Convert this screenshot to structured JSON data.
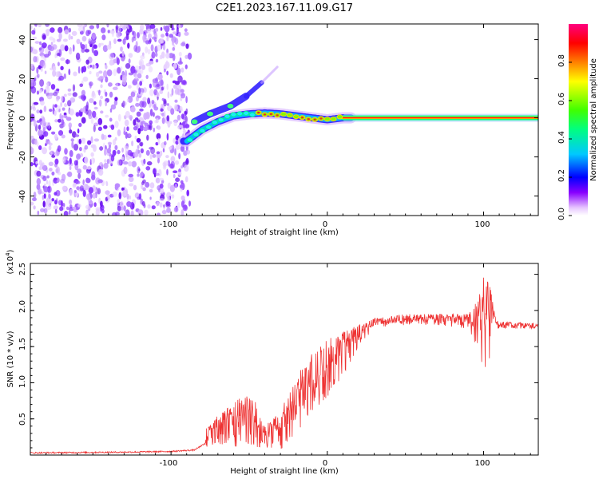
{
  "title": "C2E1.2023.167.11.09.G17",
  "chart_data": [
    {
      "type": "heatmap",
      "xlabel": "Height of straight line (km)",
      "ylabel": "Frequency (Hz)",
      "xlim": [
        -190,
        135
      ],
      "ylim": [
        -50,
        48
      ],
      "xticks": [
        -100,
        0,
        100
      ],
      "yticks": [
        -40,
        -20,
        0,
        20,
        40
      ],
      "xtick_labels": [
        "-100",
        "0",
        "100"
      ],
      "ytick_labels": [
        "-40",
        "-20",
        "0",
        "20",
        "40"
      ],
      "colorbar": {
        "label": "Normalized spectral amplitude",
        "range": [
          0,
          1
        ],
        "ticks": [
          0.0,
          0.2,
          0.4,
          0.6,
          0.8
        ],
        "tick_labels": [
          "0.0",
          "0.2",
          "0.4",
          "0.6",
          "0.8"
        ],
        "colors": [
          "#ffffff",
          "#e0b0ff",
          "#8800ff",
          "#0000ff",
          "#00c0ff",
          "#00ff80",
          "#40ff00",
          "#ffff00",
          "#ff8000",
          "#ff0000",
          "#ff0080"
        ]
      },
      "noise_region_x": [
        -190,
        -88
      ],
      "signal_trace": [
        {
          "x": -90,
          "y": -12
        },
        {
          "x": -80,
          "y": -6
        },
        {
          "x": -70,
          "y": -2
        },
        {
          "x": -60,
          "y": 1
        },
        {
          "x": -50,
          "y": 2
        },
        {
          "x": -40,
          "y": 2.5
        },
        {
          "x": -30,
          "y": 2
        },
        {
          "x": -20,
          "y": 1
        },
        {
          "x": -10,
          "y": 0
        },
        {
          "x": 0,
          "y": -1
        },
        {
          "x": 10,
          "y": 0
        },
        {
          "x": 50,
          "y": 0
        },
        {
          "x": 100,
          "y": 0
        },
        {
          "x": 135,
          "y": 0
        }
      ],
      "upper_branch": [
        {
          "x": -85,
          "y": -2
        },
        {
          "x": -75,
          "y": 2
        },
        {
          "x": -62,
          "y": 6
        },
        {
          "x": -52,
          "y": 11
        },
        {
          "x": -42,
          "y": 18
        },
        {
          "x": -32,
          "y": 26
        }
      ]
    },
    {
      "type": "line",
      "xlabel": "Height of straight line (km)",
      "ylabel": "SNR (10 * v/v)",
      "y_multiplier_label": "(x10",
      "y_multiplier_exp": "4",
      "y_multiplier_close": ")",
      "xlim": [
        -190,
        135
      ],
      "ylim": [
        0,
        2.65
      ],
      "xticks": [
        -100,
        0,
        100
      ],
      "yticks": [
        0.5,
        1.0,
        1.5,
        2.0,
        2.5
      ],
      "xtick_labels": [
        "-100",
        "0",
        "100"
      ],
      "ytick_labels": [
        "0.5",
        "1.0",
        "1.5",
        "2.0",
        "2.5"
      ],
      "line_color": "#ee3333",
      "baseline_points": [
        {
          "x": -190,
          "y": 0.02
        },
        {
          "x": -130,
          "y": 0.03
        },
        {
          "x": -100,
          "y": 0.04
        },
        {
          "x": -85,
          "y": 0.06
        },
        {
          "x": -78,
          "y": 0.15
        }
      ],
      "envelope": [
        {
          "x": -78,
          "y_low": 0.1,
          "y_high": 0.35
        },
        {
          "x": -70,
          "y_low": 0.15,
          "y_high": 0.55
        },
        {
          "x": -55,
          "y_low": 0.1,
          "y_high": 0.8
        },
        {
          "x": -48,
          "y_low": 0.15,
          "y_high": 0.9
        },
        {
          "x": -40,
          "y_low": 0.05,
          "y_high": 0.4
        },
        {
          "x": -30,
          "y_low": 0.05,
          "y_high": 0.6
        },
        {
          "x": -20,
          "y_low": 0.3,
          "y_high": 1.1
        },
        {
          "x": -10,
          "y_low": 0.6,
          "y_high": 1.4
        },
        {
          "x": 0,
          "y_low": 0.8,
          "y_high": 1.6
        },
        {
          "x": 10,
          "y_low": 1.1,
          "y_high": 1.7
        },
        {
          "x": 20,
          "y_low": 1.5,
          "y_high": 1.8
        },
        {
          "x": 30,
          "y_low": 1.75,
          "y_high": 1.9
        },
        {
          "x": 50,
          "y_low": 1.8,
          "y_high": 1.95
        },
        {
          "x": 70,
          "y_low": 1.8,
          "y_high": 1.95
        },
        {
          "x": 90,
          "y_low": 1.75,
          "y_high": 1.95
        },
        {
          "x": 95,
          "y_low": 1.5,
          "y_high": 2.1
        },
        {
          "x": 102,
          "y_low": 1.1,
          "y_high": 2.6
        },
        {
          "x": 108,
          "y_low": 1.75,
          "y_high": 1.85
        },
        {
          "x": 135,
          "y_low": 1.75,
          "y_high": 1.82
        }
      ]
    }
  ]
}
